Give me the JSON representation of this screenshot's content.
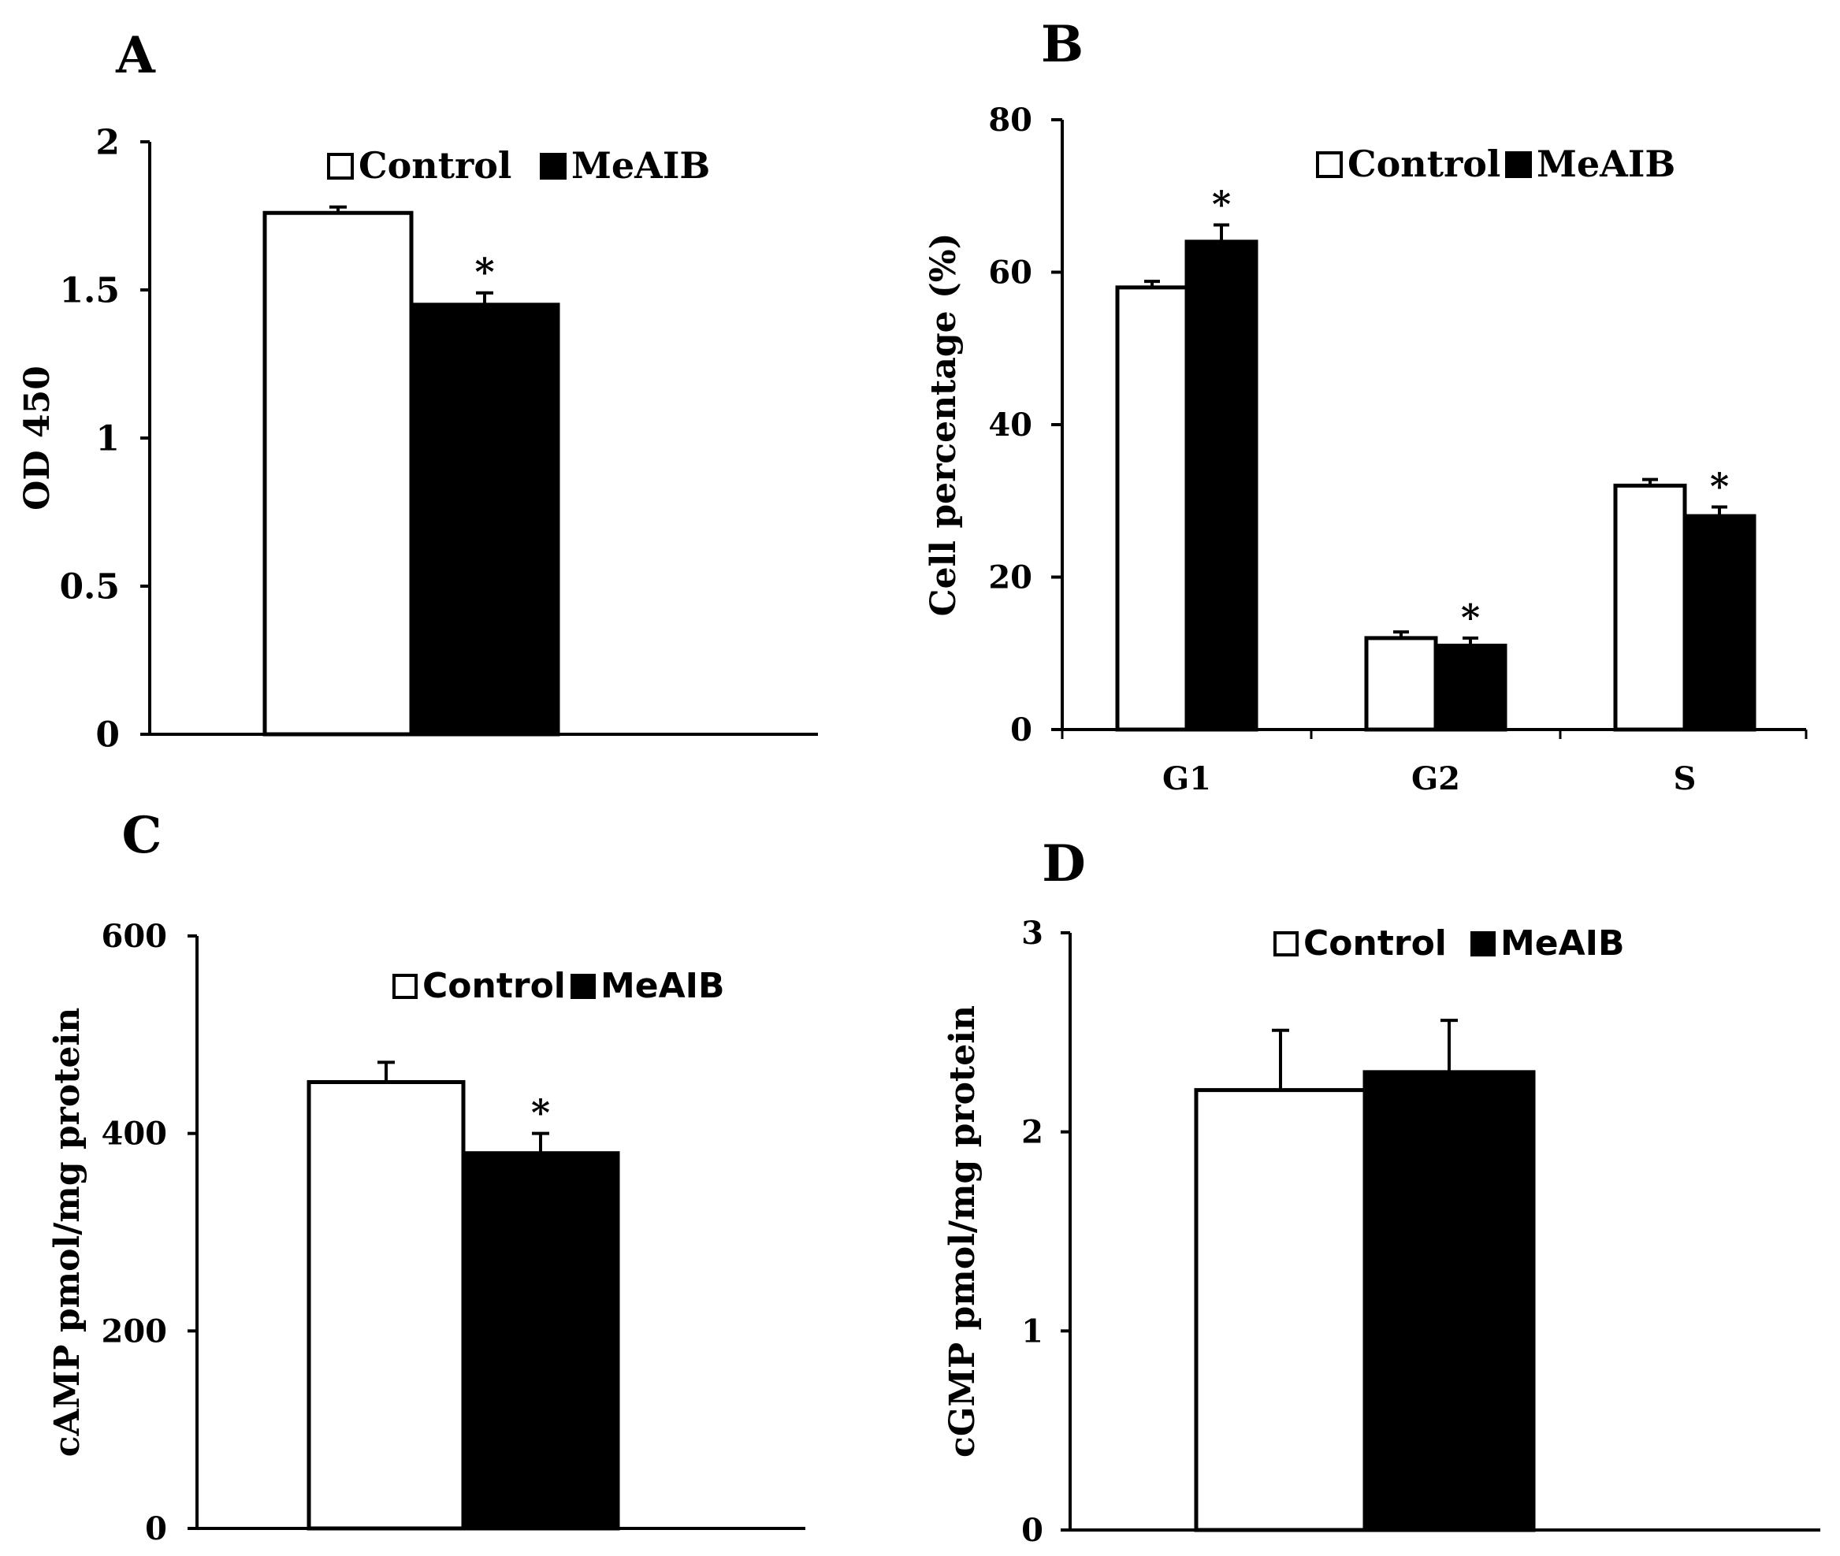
{
  "panels": {
    "A": {
      "label": "A",
      "chart_data": {
        "type": "bar",
        "title": "",
        "xlabel": "",
        "ylabel": "OD 450",
        "ylim": [
          0,
          2
        ],
        "yticks": [
          "0",
          "0.5",
          "1",
          "1.5",
          "2"
        ],
        "categories": [
          ""
        ],
        "series": [
          {
            "name": "Control",
            "values": [
              1.76
            ],
            "errors": [
              0.02
            ],
            "significant": [
              false
            ]
          },
          {
            "name": "MeAIB",
            "values": [
              1.45
            ],
            "errors": [
              0.04
            ],
            "significant": [
              true
            ]
          }
        ],
        "legend": [
          "Control",
          "MeAIB"
        ],
        "legend_position": "top-center",
        "significance_marker": "*"
      }
    },
    "B": {
      "label": "B",
      "chart_data": {
        "type": "bar",
        "title": "",
        "xlabel": "",
        "ylabel": "Cell percentage (%)",
        "ylim": [
          0,
          80
        ],
        "yticks": [
          "0",
          "20",
          "40",
          "60",
          "80"
        ],
        "categories": [
          "G1",
          "G2",
          "S"
        ],
        "series": [
          {
            "name": "Control",
            "values": [
              58,
              12,
              32
            ],
            "errors": [
              0.8,
              0.8,
              0.8
            ],
            "significant": [
              false,
              false,
              false
            ]
          },
          {
            "name": "MeAIB",
            "values": [
              64,
              11,
              28
            ],
            "errors": [
              2.2,
              1.0,
              1.2
            ],
            "significant": [
              true,
              true,
              true
            ]
          }
        ],
        "legend": [
          "Control",
          "MeAIB"
        ],
        "legend_position": "top-right",
        "significance_marker": "*"
      }
    },
    "C": {
      "label": "C",
      "chart_data": {
        "type": "bar",
        "title": "",
        "xlabel": "",
        "ylabel": "cAMP pmol/mg protein",
        "ylim": [
          0,
          600
        ],
        "yticks": [
          "0",
          "200",
          "400",
          "600"
        ],
        "categories": [
          ""
        ],
        "series": [
          {
            "name": "Control",
            "values": [
              452
            ],
            "errors": [
              20
            ],
            "significant": [
              false
            ]
          },
          {
            "name": "MeAIB",
            "values": [
              380
            ],
            "errors": [
              20
            ],
            "significant": [
              true
            ]
          }
        ],
        "legend": [
          "Control",
          "MeAIB"
        ],
        "legend_position": "top-center",
        "significance_marker": "*"
      }
    },
    "D": {
      "label": "D",
      "chart_data": {
        "type": "bar",
        "title": "",
        "xlabel": "",
        "ylabel": "cGMP pmol/mg protein",
        "ylim": [
          0,
          3
        ],
        "yticks": [
          "0",
          "1",
          "2",
          "3"
        ],
        "categories": [
          ""
        ],
        "series": [
          {
            "name": "Control",
            "values": [
              2.21
            ],
            "errors": [
              0.3
            ],
            "significant": [
              false
            ]
          },
          {
            "name": "MeAIB",
            "values": [
              2.3
            ],
            "errors": [
              0.26
            ],
            "significant": [
              false
            ]
          }
        ],
        "legend": [
          "Control",
          "MeAIB"
        ],
        "legend_position": "top-center",
        "significance_marker": "*"
      }
    }
  },
  "colors": {
    "control_fill": "#ffffff",
    "meaib_fill": "#000000",
    "stroke": "#000000"
  }
}
